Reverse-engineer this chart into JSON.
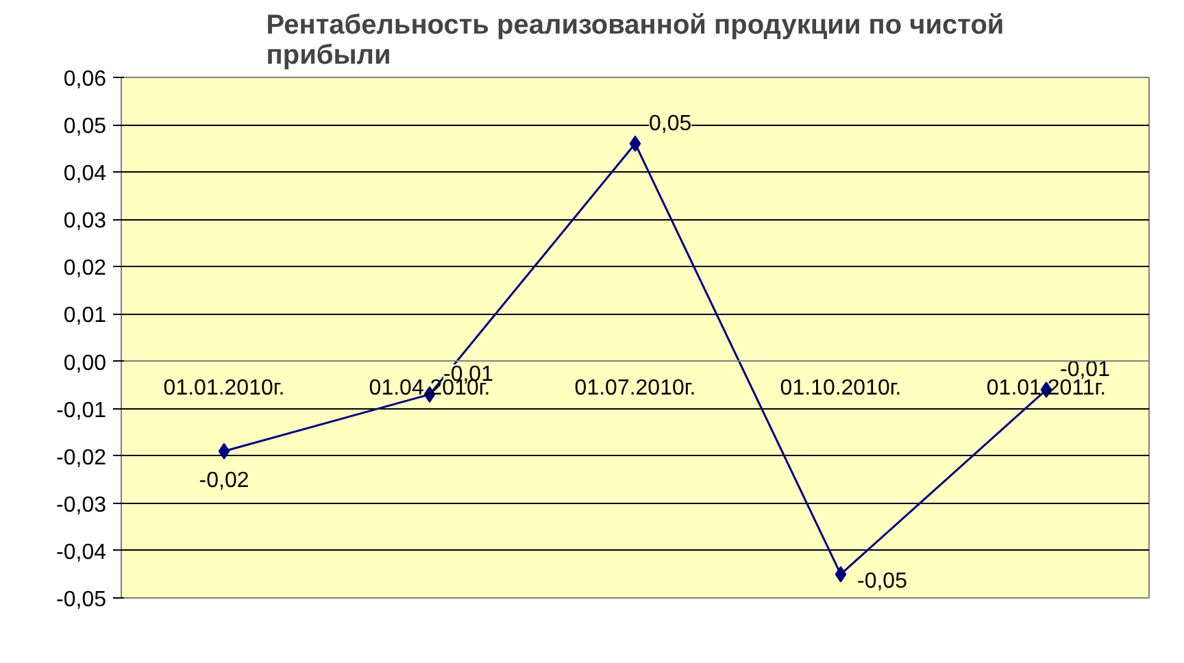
{
  "chart_data": {
    "type": "line",
    "title": "Рентабельность реализованной продукции по чистой\nприбыли",
    "categories": [
      "01.01.2010г.",
      "01.04.2010г.",
      "01.07.2010г.",
      "01.10.2010г.",
      "01.01.2011г."
    ],
    "series": [
      {
        "color": "#000080",
        "values": [
          -0.019,
          -0.007,
          0.046,
          -0.045,
          -0.006
        ],
        "value_labels": [
          "-0,02",
          "-0,01",
          "0,05",
          "-0,05",
          "-0,01"
        ]
      }
    ],
    "ylim": [
      -0.05,
      0.06
    ],
    "yticks": [
      {
        "value": -0.05,
        "label": "-0,05"
      },
      {
        "value": -0.04,
        "label": "-0,04"
      },
      {
        "value": -0.03,
        "label": "-0,03"
      },
      {
        "value": -0.02,
        "label": "-0,02"
      },
      {
        "value": -0.01,
        "label": "-0,01"
      },
      {
        "value": 0,
        "label": "0,00"
      },
      {
        "value": 0.01,
        "label": "0,01"
      },
      {
        "value": 0.02,
        "label": "0,02"
      },
      {
        "value": 0.03,
        "label": "0,03"
      },
      {
        "value": 0.04,
        "label": "0,04"
      },
      {
        "value": 0.05,
        "label": "0,05"
      },
      {
        "value": 0.06,
        "label": "0,06"
      }
    ],
    "grid": "y",
    "marker": "diamond",
    "line_style": "solid"
  }
}
